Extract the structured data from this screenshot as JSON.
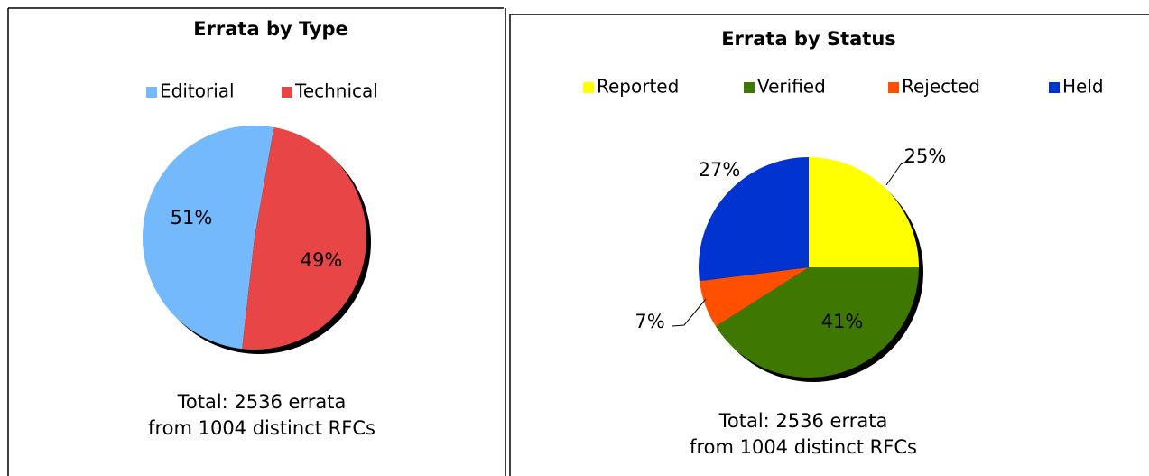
{
  "chart_data": [
    {
      "type": "pie",
      "title": "Errata by Type",
      "categories": [
        "Editorial",
        "Technical"
      ],
      "values": [
        51,
        49
      ],
      "value_labels": [
        "51%",
        "49%"
      ],
      "colors": [
        "#74b9fb",
        "#e84646"
      ],
      "footnote": [
        "Total: 2536 errata",
        "from 1004 distinct RFCs"
      ]
    },
    {
      "type": "pie",
      "title": "Errata by Status",
      "categories": [
        "Reported",
        "Verified",
        "Rejected",
        "Held"
      ],
      "values": [
        25,
        41,
        7,
        27
      ],
      "value_labels": [
        "25%",
        "41%",
        "7%",
        "27%"
      ],
      "colors": [
        "#ffff00",
        "#3f7800",
        "#ff4f00",
        "#0033d0"
      ],
      "footnote": [
        "Total: 2536 errata",
        "from 1004 distinct RFCs"
      ]
    }
  ]
}
